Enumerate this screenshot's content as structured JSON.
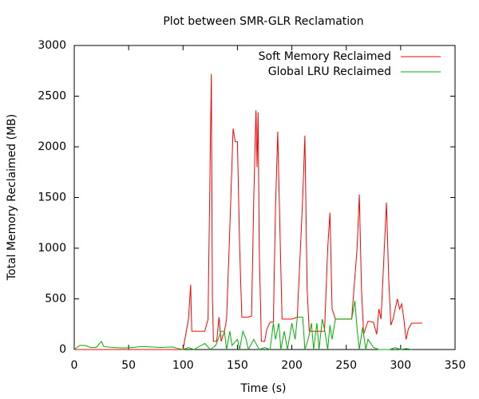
{
  "chart_data": {
    "type": "line",
    "title": "Plot between SMR-GLR Reclamation",
    "x_label": "Time (s)",
    "y_label": "Total Memory Reclaimed (MB)",
    "xlim": [
      0,
      350
    ],
    "xticks": [
      0,
      50,
      100,
      150,
      200,
      250,
      300,
      350
    ],
    "ylim": [
      0,
      3000
    ],
    "yticks": [
      0,
      500,
      1000,
      1500,
      2000,
      2500,
      3000
    ],
    "legend": "top-right",
    "series": [
      {
        "name": "Soft Memory Reclaimed",
        "color": "#ff0000",
        "x": [
          0,
          100,
          105,
          107,
          108,
          115,
          120,
          123,
          126,
          127,
          128,
          131,
          133,
          135,
          138,
          140,
          143,
          146,
          148,
          150,
          152,
          154,
          160,
          163,
          165,
          167,
          168,
          169,
          170,
          172,
          175,
          177,
          180,
          183,
          185,
          187,
          189,
          191,
          196,
          200,
          205,
          210,
          212,
          214,
          216,
          220,
          225,
          230,
          233,
          235,
          237,
          240,
          245,
          250,
          255,
          260,
          262,
          264,
          266,
          270,
          275,
          278,
          280,
          282,
          285,
          287,
          289,
          291,
          293,
          295,
          297,
          299,
          301,
          303,
          305,
          307,
          310,
          320
        ],
        "values": [
          0,
          0,
          300,
          640,
          180,
          180,
          180,
          300,
          2720,
          500,
          80,
          80,
          320,
          80,
          180,
          300,
          1200,
          2180,
          2050,
          2050,
          1000,
          320,
          320,
          330,
          1500,
          2360,
          1800,
          2340,
          1000,
          80,
          80,
          200,
          270,
          270,
          1400,
          2150,
          1200,
          300,
          300,
          300,
          320,
          1500,
          2110,
          600,
          180,
          180,
          180,
          180,
          1000,
          1350,
          400,
          300,
          300,
          300,
          300,
          1000,
          1530,
          600,
          150,
          280,
          270,
          150,
          400,
          300,
          1000,
          1450,
          700,
          240,
          300,
          400,
          500,
          400,
          450,
          300,
          100,
          200,
          260,
          260
        ]
      },
      {
        "name": "Global LRU Reclaimed",
        "color": "#00b000",
        "x": [
          0,
          5,
          10,
          15,
          20,
          25,
          27,
          35,
          45,
          55,
          60,
          70,
          80,
          90,
          95,
          100,
          105,
          110,
          120,
          125,
          130,
          135,
          138,
          140,
          143,
          145,
          150,
          152,
          155,
          158,
          160,
          165,
          170,
          175,
          180,
          183,
          185,
          188,
          190,
          193,
          196,
          200,
          203,
          205,
          210,
          212,
          215,
          218,
          220,
          223,
          225,
          228,
          230,
          233,
          235,
          237,
          240,
          245,
          250,
          255,
          258,
          260,
          262,
          265,
          268,
          270,
          275,
          280,
          285,
          290,
          295,
          300,
          305,
          310
        ],
        "values": [
          0,
          40,
          40,
          20,
          20,
          80,
          30,
          20,
          15,
          20,
          30,
          25,
          20,
          25,
          10,
          0,
          20,
          0,
          60,
          0,
          40,
          180,
          180,
          0,
          180,
          40,
          100,
          0,
          180,
          100,
          0,
          100,
          0,
          20,
          0,
          260,
          100,
          260,
          0,
          180,
          0,
          260,
          100,
          320,
          320,
          0,
          100,
          260,
          0,
          260,
          0,
          300,
          200,
          0,
          240,
          100,
          300,
          300,
          300,
          300,
          480,
          200,
          0,
          220,
          0,
          100,
          20,
          0,
          0,
          0,
          20,
          0,
          10,
          0
        ]
      }
    ]
  }
}
